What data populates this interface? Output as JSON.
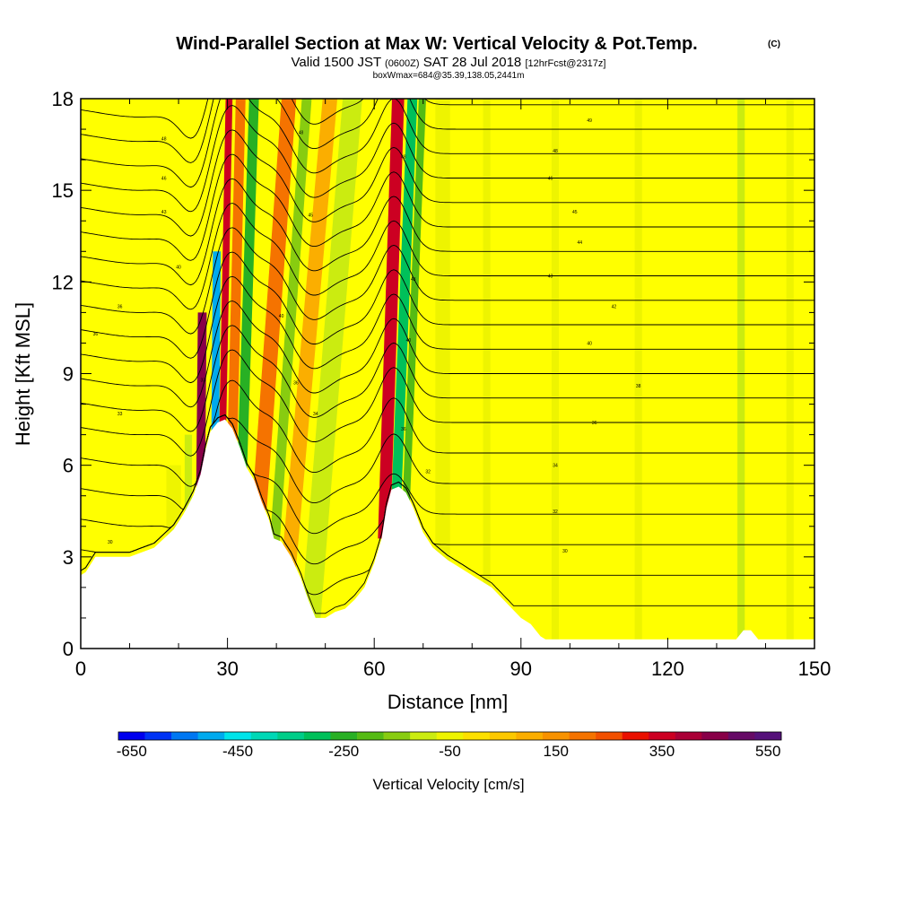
{
  "chart_data": {
    "type": "heatmap",
    "title": "Wind-Parallel Section at Max W: Vertical Velocity & Pot.Temp.",
    "title_mark": "(C)",
    "subtitle": {
      "valid": "Valid 1500 JST",
      "zulu": "(0600Z)",
      "date": "SAT 28 Jul 2018",
      "fcst": "[12hrFcst@2317z]"
    },
    "subtitle2": "boxWmax=684@35.39,138.05,2441m",
    "xlabel": "Distance [nm]",
    "ylabel": "Height [Kft MSL]",
    "xlim": [
      0,
      150
    ],
    "ylim": [
      0,
      18
    ],
    "xticks": [
      0,
      30,
      60,
      90,
      120,
      150
    ],
    "yticks": [
      0,
      3,
      6,
      9,
      12,
      15,
      18
    ],
    "terrain": {
      "x": [
        0,
        1,
        3,
        5,
        10,
        15,
        19,
        21,
        23,
        24.5,
        25.5,
        26.5,
        28,
        29.5,
        31,
        32.5,
        34,
        35.5,
        37,
        38.5,
        39.5,
        41,
        43,
        45,
        46.5,
        48,
        50,
        52,
        54,
        56,
        58,
        60,
        61.5,
        62.5,
        63.5,
        65,
        66.5,
        68,
        70,
        72,
        75,
        78,
        81,
        84,
        87,
        90,
        92,
        93,
        94,
        95,
        100,
        110,
        120,
        128,
        132,
        134,
        135.5,
        137,
        138.5,
        140,
        150
      ],
      "height": [
        2.4,
        2.5,
        3.0,
        3.0,
        3.0,
        3.3,
        3.9,
        4.4,
        5.0,
        5.7,
        6.5,
        7.1,
        7.4,
        7.5,
        7.2,
        6.6,
        5.9,
        5.5,
        4.8,
        4.2,
        3.6,
        3.5,
        3.0,
        2.3,
        1.6,
        1.0,
        1.0,
        1.2,
        1.3,
        1.6,
        2.0,
        2.8,
        3.6,
        4.6,
        5.2,
        5.3,
        5.1,
        4.6,
        3.8,
        3.3,
        2.9,
        2.6,
        2.3,
        2.0,
        1.5,
        1.0,
        0.8,
        0.6,
        0.4,
        0.3,
        0.3,
        0.3,
        0.3,
        0.3,
        0.3,
        0.3,
        0.6,
        0.6,
        0.3,
        0.3,
        0.3
      ]
    },
    "vertical_velocity_bands": [
      {
        "x": 24.5,
        "w": 1.8,
        "slope": 0.06,
        "top": 11,
        "value": 450
      },
      {
        "x": 27.5,
        "w": 1.6,
        "slope": 0.05,
        "top": 13,
        "value": -500
      },
      {
        "x": 29,
        "w": 1.4,
        "slope": 0.12,
        "top": 18,
        "value": 350
      },
      {
        "x": 31,
        "w": 2.0,
        "slope": 0.15,
        "top": 18,
        "value": 200
      },
      {
        "x": 33,
        "w": 2.0,
        "slope": 0.2,
        "top": 18,
        "value": -250
      },
      {
        "x": 36.5,
        "w": 3.0,
        "slope": 0.45,
        "top": 18,
        "value": 200
      },
      {
        "x": 39.5,
        "w": 2.0,
        "slope": 0.45,
        "top": 18,
        "value": -150
      },
      {
        "x": 42.5,
        "w": 3.0,
        "slope": 0.55,
        "top": 18,
        "value": 100
      },
      {
        "x": 47,
        "w": 4.0,
        "slope": 0.5,
        "top": 18,
        "value": -100
      },
      {
        "x": 62,
        "w": 2.5,
        "slope": 0.2,
        "top": 18,
        "value": 350
      },
      {
        "x": 64.5,
        "w": 2.0,
        "slope": 0.25,
        "top": 18,
        "value": -300
      },
      {
        "x": 66.5,
        "w": 1.5,
        "slope": 0.25,
        "top": 18,
        "value": -200
      },
      {
        "x": 22,
        "w": 1.5,
        "slope": 0.0,
        "top": 7,
        "value": -100
      },
      {
        "x": 19,
        "w": 3.0,
        "slope": 0.0,
        "top": 6,
        "value": -50
      },
      {
        "x": 74,
        "w": 3.0,
        "slope": 0.0,
        "top": 18,
        "value": -50
      },
      {
        "x": 83,
        "w": 1.5,
        "slope": 0.0,
        "top": 18,
        "value": -50
      },
      {
        "x": 97,
        "w": 1.5,
        "slope": 0.0,
        "top": 18,
        "value": -50
      },
      {
        "x": 114,
        "w": 1.5,
        "slope": 0.0,
        "top": 18,
        "value": -50
      },
      {
        "x": 135,
        "w": 1.5,
        "slope": 0.0,
        "top": 18,
        "value": -100
      },
      {
        "x": 145,
        "w": 1.5,
        "slope": 0.0,
        "top": 18,
        "value": -50
      }
    ],
    "potential_temperature": {
      "levels_kft": [
        1.4,
        2.4,
        3.4,
        4.4,
        5.4,
        6.4,
        7.4,
        8.2,
        9.0,
        9.8,
        10.6,
        11.4,
        12.2,
        13.0,
        13.8,
        14.6,
        15.4,
        16.2,
        17.0,
        17.8
      ],
      "labels": [
        {
          "x": 6,
          "y": 3.5,
          "text": "30"
        },
        {
          "x": 8,
          "y": 7.7,
          "text": "33"
        },
        {
          "x": 3,
          "y": 10.3,
          "text": "36"
        },
        {
          "x": 8,
          "y": 11.2,
          "text": "36"
        },
        {
          "x": 17,
          "y": 16.7,
          "text": "48"
        },
        {
          "x": 17,
          "y": 14.3,
          "text": "43"
        },
        {
          "x": 17,
          "y": 15.4,
          "text": "46"
        },
        {
          "x": 20,
          "y": 12.5,
          "text": "40"
        },
        {
          "x": 25,
          "y": 8.8,
          "text": "33"
        },
        {
          "x": 45,
          "y": 16.9,
          "text": "48"
        },
        {
          "x": 47,
          "y": 14.2,
          "text": "45"
        },
        {
          "x": 41,
          "y": 10.9,
          "text": "40"
        },
        {
          "x": 44,
          "y": 8.7,
          "text": "36"
        },
        {
          "x": 48,
          "y": 7.7,
          "text": "34"
        },
        {
          "x": 66,
          "y": 16.1,
          "text": "48"
        },
        {
          "x": 67,
          "y": 10.1,
          "text": "40"
        },
        {
          "x": 68,
          "y": 12.1,
          "text": "43"
        },
        {
          "x": 66,
          "y": 7.2,
          "text": "36"
        },
        {
          "x": 71,
          "y": 5.8,
          "text": "32"
        },
        {
          "x": 104,
          "y": 17.3,
          "text": "49"
        },
        {
          "x": 97,
          "y": 16.3,
          "text": "48"
        },
        {
          "x": 96,
          "y": 15.4,
          "text": "46"
        },
        {
          "x": 101,
          "y": 14.3,
          "text": "45"
        },
        {
          "x": 102,
          "y": 13.3,
          "text": "44"
        },
        {
          "x": 96,
          "y": 12.2,
          "text": "43"
        },
        {
          "x": 109,
          "y": 11.2,
          "text": "42"
        },
        {
          "x": 104,
          "y": 10.0,
          "text": "40"
        },
        {
          "x": 114,
          "y": 8.6,
          "text": "38"
        },
        {
          "x": 105,
          "y": 7.4,
          "text": "36"
        },
        {
          "x": 97,
          "y": 6.0,
          "text": "34"
        },
        {
          "x": 97,
          "y": 4.5,
          "text": "32"
        },
        {
          "x": 99,
          "y": 3.2,
          "text": "30"
        }
      ]
    },
    "colorbar": {
      "label": "Vertical Velocity [cm/s]",
      "ticks": [
        "-650",
        "-450",
        "-250",
        "-50",
        "150",
        "350",
        "550"
      ],
      "colors": [
        "#0000ee",
        "#0033f5",
        "#0077f2",
        "#00aaee",
        "#00e4ea",
        "#00d8b6",
        "#00cd88",
        "#00c05a",
        "#28b024",
        "#55bb14",
        "#88cc10",
        "#cbec10",
        "#eef400",
        "#fde000",
        "#fcc800",
        "#fbae00",
        "#f89200",
        "#f57300",
        "#f25000",
        "#ea1000",
        "#cc0022",
        "#aa0036",
        "#880048",
        "#660a66",
        "#55117a"
      ]
    }
  }
}
